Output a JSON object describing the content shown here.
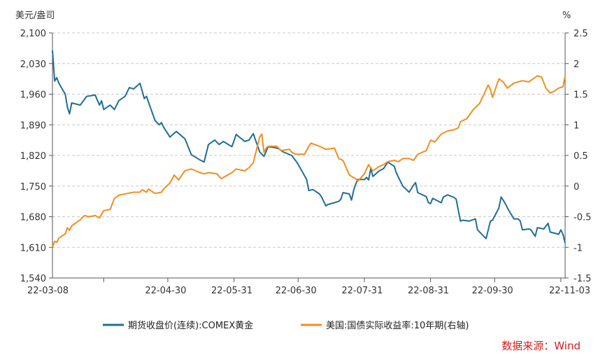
{
  "chart_data": {
    "type": "line",
    "title": "",
    "left_axis": {
      "unit": "美元/盎司",
      "ylim": [
        1540,
        2100
      ],
      "ticks": [
        "2,100",
        "2,030",
        "1,960",
        "1,890",
        "1,820",
        "1,750",
        "1,680",
        "1,610",
        "1,540"
      ]
    },
    "right_axis": {
      "unit": "%",
      "ylim": [
        -1.5,
        2.5
      ],
      "ticks": [
        "2.5",
        "2",
        "1.5",
        "1",
        "0.5",
        "0",
        "-0.5",
        "-1",
        "-1.5"
      ]
    },
    "x_axis": {
      "range": [
        "2022-03-08",
        "2022-11-03"
      ],
      "ticks": [
        {
          "date": "2022-03-08",
          "label": "22-03-08"
        },
        {
          "date": "2022-04-30",
          "label": "22-04-30"
        },
        {
          "date": "2022-05-31",
          "label": "22-05-31"
        },
        {
          "date": "2022-06-30",
          "label": "22-06-30"
        },
        {
          "date": "2022-07-31",
          "label": "22-07-31"
        },
        {
          "date": "2022-08-31",
          "label": "22-08-31"
        },
        {
          "date": "2022-09-30",
          "label": "22-09-30"
        },
        {
          "date": "2022-11-03",
          "label": "22-11-03"
        }
      ]
    },
    "grid": "horizontal-dashed",
    "legend_position": "bottom",
    "series": [
      {
        "name": "期货收盘价(连续):COMEX黄金",
        "axis": "left",
        "color": "#1f6f96",
        "points": [
          [
            "2022-03-08",
            2060
          ],
          [
            "2022-03-09",
            1990
          ],
          [
            "2022-03-10",
            1998
          ],
          [
            "2022-03-11",
            1985
          ],
          [
            "2022-03-14",
            1960
          ],
          [
            "2022-03-15",
            1930
          ],
          [
            "2022-03-16",
            1915
          ],
          [
            "2022-03-17",
            1940
          ],
          [
            "2022-03-21",
            1935
          ],
          [
            "2022-03-24",
            1955
          ],
          [
            "2022-03-28",
            1958
          ],
          [
            "2022-03-30",
            1935
          ],
          [
            "2022-03-31",
            1945
          ],
          [
            "2022-04-01",
            1925
          ],
          [
            "2022-04-04",
            1935
          ],
          [
            "2022-04-06",
            1925
          ],
          [
            "2022-04-08",
            1945
          ],
          [
            "2022-04-11",
            1955
          ],
          [
            "2022-04-13",
            1975
          ],
          [
            "2022-04-15",
            1972
          ],
          [
            "2022-04-18",
            1985
          ],
          [
            "2022-04-20",
            1950
          ],
          [
            "2022-04-21",
            1955
          ],
          [
            "2022-04-25",
            1900
          ],
          [
            "2022-04-27",
            1890
          ],
          [
            "2022-04-28",
            1895
          ],
          [
            "2022-04-29",
            1885
          ],
          [
            "2022-05-02",
            1862
          ],
          [
            "2022-05-05",
            1875
          ],
          [
            "2022-05-09",
            1858
          ],
          [
            "2022-05-12",
            1822
          ],
          [
            "2022-05-16",
            1810
          ],
          [
            "2022-05-18",
            1805
          ],
          [
            "2022-05-20",
            1845
          ],
          [
            "2022-05-23",
            1855
          ],
          [
            "2022-05-25",
            1845
          ],
          [
            "2022-05-27",
            1852
          ],
          [
            "2022-05-31",
            1840
          ],
          [
            "2022-06-02",
            1868
          ],
          [
            "2022-06-06",
            1852
          ],
          [
            "2022-06-08",
            1855
          ],
          [
            "2022-06-10",
            1870
          ],
          [
            "2022-06-13",
            1828
          ],
          [
            "2022-06-15",
            1818
          ],
          [
            "2022-06-17",
            1840
          ],
          [
            "2022-06-20",
            1838
          ],
          [
            "2022-06-22",
            1835
          ],
          [
            "2022-06-24",
            1828
          ],
          [
            "2022-06-28",
            1820
          ],
          [
            "2022-06-30",
            1807
          ],
          [
            "2022-07-01",
            1800
          ],
          [
            "2022-07-05",
            1765
          ],
          [
            "2022-07-06",
            1740
          ],
          [
            "2022-07-08",
            1742
          ],
          [
            "2022-07-11",
            1732
          ],
          [
            "2022-07-12",
            1725
          ],
          [
            "2022-07-14",
            1705
          ],
          [
            "2022-07-15",
            1708
          ],
          [
            "2022-07-18",
            1712
          ],
          [
            "2022-07-20",
            1715
          ],
          [
            "2022-07-21",
            1720
          ],
          [
            "2022-07-22",
            1735
          ],
          [
            "2022-07-25",
            1732
          ],
          [
            "2022-07-26",
            1718
          ],
          [
            "2022-07-27",
            1740
          ],
          [
            "2022-07-28",
            1755
          ],
          [
            "2022-07-29",
            1765
          ],
          [
            "2022-08-01",
            1765
          ],
          [
            "2022-08-02",
            1770
          ],
          [
            "2022-08-03",
            1764
          ],
          [
            "2022-08-04",
            1790
          ],
          [
            "2022-08-05",
            1772
          ],
          [
            "2022-08-08",
            1785
          ],
          [
            "2022-08-10",
            1790
          ],
          [
            "2022-08-12",
            1805
          ],
          [
            "2022-08-15",
            1795
          ],
          [
            "2022-08-16",
            1780
          ],
          [
            "2022-08-18",
            1760
          ],
          [
            "2022-08-19",
            1750
          ],
          [
            "2022-08-22",
            1736
          ],
          [
            "2022-08-24",
            1752
          ],
          [
            "2022-08-25",
            1758
          ],
          [
            "2022-08-26",
            1735
          ],
          [
            "2022-08-30",
            1726
          ],
          [
            "2022-08-31",
            1712
          ],
          [
            "2022-09-01",
            1710
          ],
          [
            "2022-09-02",
            1722
          ],
          [
            "2022-09-06",
            1712
          ],
          [
            "2022-09-07",
            1725
          ],
          [
            "2022-09-09",
            1730
          ],
          [
            "2022-09-12",
            1724
          ],
          [
            "2022-09-13",
            1720
          ],
          [
            "2022-09-15",
            1670
          ],
          [
            "2022-09-16",
            1672
          ],
          [
            "2022-09-19",
            1670
          ],
          [
            "2022-09-22",
            1675
          ],
          [
            "2022-09-23",
            1650
          ],
          [
            "2022-09-27",
            1630
          ],
          [
            "2022-09-29",
            1670
          ],
          [
            "2022-09-30",
            1672
          ],
          [
            "2022-10-03",
            1700
          ],
          [
            "2022-10-04",
            1725
          ],
          [
            "2022-10-05",
            1718
          ],
          [
            "2022-10-06",
            1710
          ],
          [
            "2022-10-07",
            1700
          ],
          [
            "2022-10-10",
            1675
          ],
          [
            "2022-10-12",
            1675
          ],
          [
            "2022-10-13",
            1670
          ],
          [
            "2022-10-14",
            1650
          ],
          [
            "2022-10-17",
            1652
          ],
          [
            "2022-10-18",
            1650
          ],
          [
            "2022-10-20",
            1635
          ],
          [
            "2022-10-21",
            1655
          ],
          [
            "2022-10-24",
            1652
          ],
          [
            "2022-10-26",
            1665
          ],
          [
            "2022-10-27",
            1645
          ],
          [
            "2022-10-31",
            1640
          ],
          [
            "2022-11-01",
            1650
          ],
          [
            "2022-11-02",
            1640
          ],
          [
            "2022-11-03",
            1620
          ]
        ]
      },
      {
        "name": "美国:国债实际收益率:10年期(右轴)",
        "axis": "right",
        "color": "#f28e1c",
        "points": [
          [
            "2022-03-08",
            -1.0
          ],
          [
            "2022-03-09",
            -0.9
          ],
          [
            "2022-03-10",
            -0.92
          ],
          [
            "2022-03-11",
            -0.85
          ],
          [
            "2022-03-14",
            -0.78
          ],
          [
            "2022-03-15",
            -0.68
          ],
          [
            "2022-03-16",
            -0.72
          ],
          [
            "2022-03-17",
            -0.65
          ],
          [
            "2022-03-21",
            -0.55
          ],
          [
            "2022-03-23",
            -0.48
          ],
          [
            "2022-03-25",
            -0.5
          ],
          [
            "2022-03-28",
            -0.48
          ],
          [
            "2022-03-30",
            -0.52
          ],
          [
            "2022-04-01",
            -0.4
          ],
          [
            "2022-04-04",
            -0.38
          ],
          [
            "2022-04-06",
            -0.2
          ],
          [
            "2022-04-08",
            -0.15
          ],
          [
            "2022-04-12",
            -0.12
          ],
          [
            "2022-04-15",
            -0.1
          ],
          [
            "2022-04-18",
            -0.1
          ],
          [
            "2022-04-19",
            -0.06
          ],
          [
            "2022-04-21",
            -0.1
          ],
          [
            "2022-04-22",
            -0.05
          ],
          [
            "2022-04-25",
            -0.12
          ],
          [
            "2022-04-28",
            -0.1
          ],
          [
            "2022-04-29",
            -0.05
          ],
          [
            "2022-05-02",
            0.05
          ],
          [
            "2022-05-04",
            0.18
          ],
          [
            "2022-05-06",
            0.1
          ],
          [
            "2022-05-09",
            0.25
          ],
          [
            "2022-05-12",
            0.28
          ],
          [
            "2022-05-16",
            0.22
          ],
          [
            "2022-05-18",
            0.2
          ],
          [
            "2022-05-20",
            0.22
          ],
          [
            "2022-05-24",
            0.2
          ],
          [
            "2022-05-26",
            0.12
          ],
          [
            "2022-05-31",
            0.22
          ],
          [
            "2022-06-02",
            0.28
          ],
          [
            "2022-06-06",
            0.25
          ],
          [
            "2022-06-08",
            0.3
          ],
          [
            "2022-06-10",
            0.38
          ],
          [
            "2022-06-13",
            0.8
          ],
          [
            "2022-06-14",
            0.85
          ],
          [
            "2022-06-15",
            0.55
          ],
          [
            "2022-06-16",
            0.62
          ],
          [
            "2022-06-17",
            0.65
          ],
          [
            "2022-06-21",
            0.65
          ],
          [
            "2022-06-23",
            0.58
          ],
          [
            "2022-06-27",
            0.6
          ],
          [
            "2022-06-28",
            0.55
          ],
          [
            "2022-06-30",
            0.52
          ],
          [
            "2022-07-04",
            0.52
          ],
          [
            "2022-07-06",
            0.65
          ],
          [
            "2022-07-07",
            0.7
          ],
          [
            "2022-07-11",
            0.65
          ],
          [
            "2022-07-14",
            0.6
          ],
          [
            "2022-07-18",
            0.62
          ],
          [
            "2022-07-20",
            0.45
          ],
          [
            "2022-07-22",
            0.42
          ],
          [
            "2022-07-25",
            0.18
          ],
          [
            "2022-07-28",
            0.12
          ],
          [
            "2022-07-29",
            0.08
          ],
          [
            "2022-08-01",
            0.2
          ],
          [
            "2022-08-03",
            0.35
          ],
          [
            "2022-08-05",
            0.25
          ],
          [
            "2022-08-08",
            0.32
          ],
          [
            "2022-08-10",
            0.35
          ],
          [
            "2022-08-12",
            0.4
          ],
          [
            "2022-08-15",
            0.42
          ],
          [
            "2022-08-17",
            0.4
          ],
          [
            "2022-08-19",
            0.45
          ],
          [
            "2022-08-22",
            0.45
          ],
          [
            "2022-08-24",
            0.42
          ],
          [
            "2022-08-26",
            0.52
          ],
          [
            "2022-08-30",
            0.58
          ],
          [
            "2022-09-01",
            0.75
          ],
          [
            "2022-09-03",
            0.72
          ],
          [
            "2022-09-06",
            0.85
          ],
          [
            "2022-09-09",
            0.9
          ],
          [
            "2022-09-12",
            0.92
          ],
          [
            "2022-09-14",
            0.95
          ],
          [
            "2022-09-15",
            1.05
          ],
          [
            "2022-09-18",
            1.1
          ],
          [
            "2022-09-21",
            1.25
          ],
          [
            "2022-09-24",
            1.35
          ],
          [
            "2022-09-26",
            1.5
          ],
          [
            "2022-09-28",
            1.65
          ],
          [
            "2022-09-29",
            1.58
          ],
          [
            "2022-09-30",
            1.45
          ],
          [
            "2022-10-03",
            1.75
          ],
          [
            "2022-10-05",
            1.7
          ],
          [
            "2022-10-07",
            1.6
          ],
          [
            "2022-10-10",
            1.68
          ],
          [
            "2022-10-12",
            1.7
          ],
          [
            "2022-10-14",
            1.72
          ],
          [
            "2022-10-17",
            1.7
          ],
          [
            "2022-10-21",
            1.8
          ],
          [
            "2022-10-23",
            1.78
          ],
          [
            "2022-10-25",
            1.6
          ],
          [
            "2022-10-27",
            1.52
          ],
          [
            "2022-10-29",
            1.55
          ],
          [
            "2022-10-31",
            1.6
          ],
          [
            "2022-11-02",
            1.62
          ],
          [
            "2022-11-03",
            1.8
          ]
        ]
      }
    ],
    "source": "数据来源：Wind"
  }
}
